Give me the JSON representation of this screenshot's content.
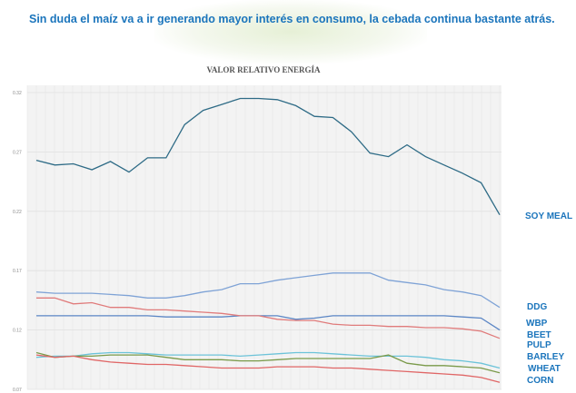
{
  "headline": "Sin duda el maíz va a ir generando mayor interés en consumo, la cebada continua bastante atrás.",
  "chart_data": {
    "type": "line",
    "title": "VALOR RELATIVO ENERGÍA",
    "xlabel": "",
    "ylabel": "",
    "ylim": [
      0.07,
      0.32
    ],
    "yticks": [
      "0.32",
      "0.27",
      "0.22",
      "0.17",
      "0.12",
      "0.07"
    ],
    "grid": true,
    "legend": "right (labels at line ends)",
    "series": [
      {
        "name": "SOY MEAL",
        "color": "#2e6b86",
        "values": [
          0.263,
          0.259,
          0.26,
          0.255,
          0.262,
          0.253,
          0.265,
          0.265,
          0.293,
          0.305,
          0.31,
          0.315,
          0.315,
          0.314,
          0.309,
          0.3,
          0.299,
          0.287,
          0.269,
          0.266,
          0.276,
          0.266,
          0.259,
          0.252,
          0.244,
          0.217
        ]
      },
      {
        "name": "DDG",
        "color": "#7fa3d6",
        "values": [
          0.152,
          0.151,
          0.151,
          0.151,
          0.15,
          0.149,
          0.147,
          0.147,
          0.149,
          0.152,
          0.154,
          0.159,
          0.159,
          0.162,
          0.164,
          0.166,
          0.168,
          0.168,
          0.168,
          0.162,
          0.16,
          0.158,
          0.154,
          0.152,
          0.149,
          0.139
        ]
      },
      {
        "name": "WBP",
        "color": "#5b86c5",
        "values": [
          0.132,
          0.132,
          0.132,
          0.132,
          0.132,
          0.132,
          0.132,
          0.131,
          0.131,
          0.131,
          0.131,
          0.132,
          0.132,
          0.132,
          0.129,
          0.13,
          0.132,
          0.132,
          0.132,
          0.132,
          0.132,
          0.132,
          0.132,
          0.131,
          0.13,
          0.12
        ]
      },
      {
        "name": "BEET PULP",
        "color": "#e07b7b",
        "values": [
          0.147,
          0.147,
          0.142,
          0.143,
          0.139,
          0.139,
          0.137,
          0.137,
          0.136,
          0.135,
          0.134,
          0.132,
          0.132,
          0.129,
          0.128,
          0.128,
          0.125,
          0.124,
          0.124,
          0.123,
          0.123,
          0.122,
          0.122,
          0.121,
          0.119,
          0.113
        ]
      },
      {
        "name": "BARLEY",
        "color": "#6cc3d9",
        "values": [
          0.097,
          0.098,
          0.098,
          0.1,
          0.101,
          0.101,
          0.1,
          0.099,
          0.099,
          0.099,
          0.099,
          0.098,
          0.099,
          0.1,
          0.101,
          0.101,
          0.1,
          0.099,
          0.098,
          0.098,
          0.098,
          0.097,
          0.095,
          0.094,
          0.092,
          0.088
        ]
      },
      {
        "name": "WHEAT",
        "color": "#7a9a4a",
        "values": [
          0.101,
          0.097,
          0.098,
          0.098,
          0.099,
          0.099,
          0.099,
          0.097,
          0.095,
          0.095,
          0.095,
          0.094,
          0.094,
          0.095,
          0.096,
          0.096,
          0.096,
          0.096,
          0.096,
          0.099,
          0.092,
          0.09,
          0.09,
          0.089,
          0.088,
          0.084
        ]
      },
      {
        "name": "CORN",
        "color": "#e06666",
        "values": [
          0.099,
          0.097,
          0.098,
          0.095,
          0.093,
          0.092,
          0.091,
          0.091,
          0.09,
          0.089,
          0.088,
          0.088,
          0.088,
          0.089,
          0.089,
          0.089,
          0.088,
          0.088,
          0.087,
          0.086,
          0.085,
          0.084,
          0.083,
          0.082,
          0.08,
          0.076
        ]
      }
    ]
  }
}
